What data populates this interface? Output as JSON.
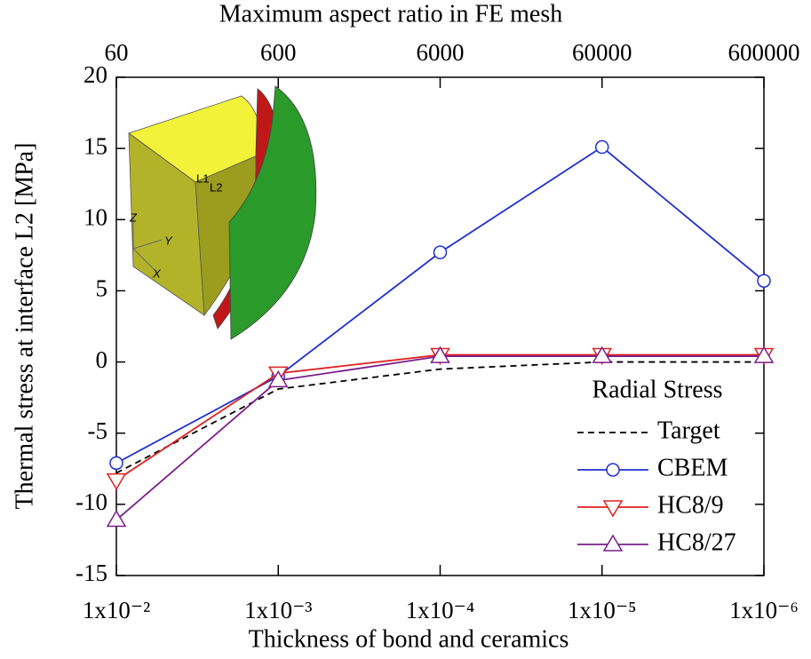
{
  "chart_data": {
    "type": "line",
    "title": "Maximum aspect ratio in FE mesh",
    "xlabel": "Thickness of bond and ceramics",
    "ylabel": "Thermal stress at interface L2 [MPa]",
    "x": [
      0.01,
      0.001,
      0.0001,
      1e-05,
      1e-06
    ],
    "xlim": [
      0.01,
      1e-06
    ],
    "xscale": "log",
    "xticks": [
      {
        "value": 0.01,
        "label": "1x10⁻²"
      },
      {
        "value": 0.001,
        "label": "1x10⁻³"
      },
      {
        "value": 0.0001,
        "label": "1x10⁻⁴"
      },
      {
        "value": 1e-05,
        "label": "1x10⁻⁵"
      },
      {
        "value": 1e-06,
        "label": "1x10⁻⁶"
      }
    ],
    "x2lim": [
      60,
      600000
    ],
    "x2ticks": [
      60,
      600,
      6000,
      60000,
      600000
    ],
    "ylim": [
      -15,
      20
    ],
    "yticks": [
      20,
      15,
      10,
      5,
      0,
      -5,
      -10,
      -15
    ],
    "legend_title": "Radial Stress",
    "legend_position": "lower-right",
    "series": [
      {
        "name": "Target",
        "color": "#000000",
        "dashed": true,
        "marker": "none",
        "values": [
          -7.8,
          -1.9,
          -0.5,
          0.0,
          0.0
        ]
      },
      {
        "name": "CBEM",
        "color": "#1f2fd0",
        "dashed": false,
        "marker": "circle",
        "values": [
          -7.1,
          -1.0,
          7.7,
          15.1,
          5.7
        ]
      },
      {
        "name": "HC8/9",
        "color": "#e02020",
        "dashed": false,
        "marker": "triangle-down",
        "values": [
          -8.3,
          -0.8,
          0.5,
          0.5,
          0.5
        ]
      },
      {
        "name": "HC8/27",
        "color": "#7a1f8a",
        "dashed": false,
        "marker": "triangle-up",
        "values": [
          -11.1,
          -1.3,
          0.4,
          0.4,
          0.4
        ]
      }
    ],
    "annotations": [
      "L1",
      "L2",
      "Z",
      "Y",
      "X"
    ]
  }
}
